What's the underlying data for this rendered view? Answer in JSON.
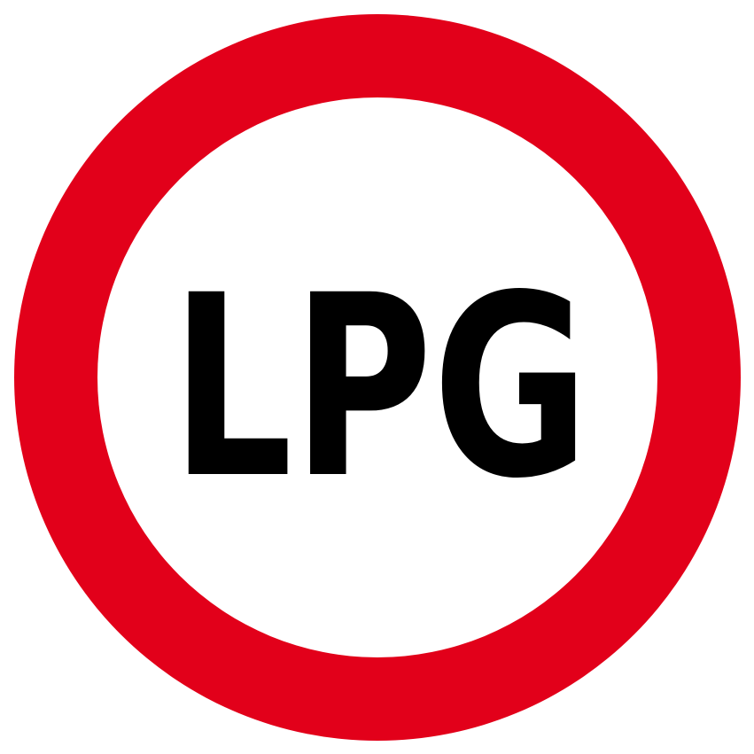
{
  "sign": {
    "text": "LPG",
    "ring_color": "#E2001A",
    "inner_color": "#FFFFFF",
    "text_color": "#000000"
  }
}
